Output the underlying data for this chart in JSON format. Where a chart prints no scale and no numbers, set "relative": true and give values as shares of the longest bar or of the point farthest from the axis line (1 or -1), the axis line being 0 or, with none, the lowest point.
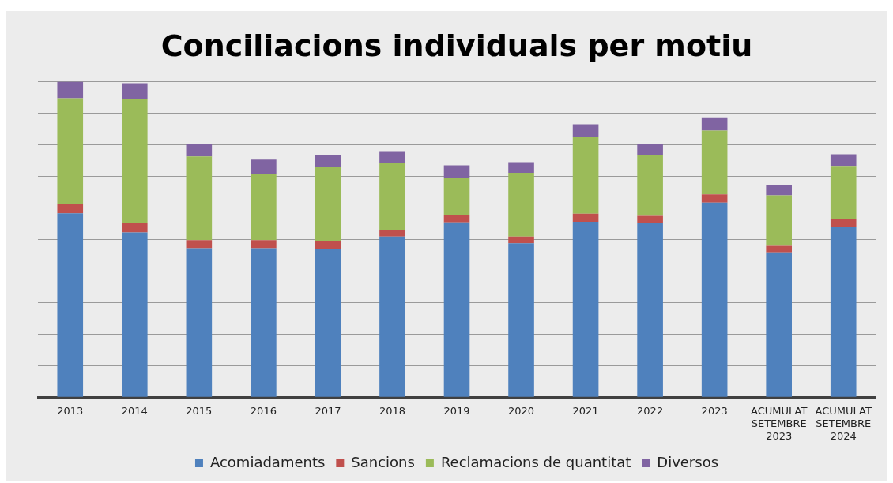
{
  "chart_data": {
    "type": "bar",
    "title": "Conciliacions individuals per motiu",
    "stacked": true,
    "relative": true,
    "grid": "y",
    "legend": "bottom",
    "categories": [
      "2013",
      "2014",
      "2015",
      "2016",
      "2017",
      "2018",
      "2019",
      "2020",
      "2021",
      "2022",
      "2023",
      "ACUMULAT SETEMBRE 2023",
      "ACUMULAT SETEMBRE 2024"
    ],
    "series": [
      {
        "name": "Acomiadaments",
        "color": "#4f81bd",
        "values": [
          0.583,
          0.522,
          0.472,
          0.472,
          0.47,
          0.509,
          0.554,
          0.488,
          0.556,
          0.551,
          0.617,
          0.459,
          0.541
        ]
      },
      {
        "name": "Sancions",
        "color": "#c0504d",
        "values": [
          0.029,
          0.029,
          0.026,
          0.026,
          0.024,
          0.021,
          0.024,
          0.021,
          0.026,
          0.024,
          0.026,
          0.021,
          0.024
        ]
      },
      {
        "name": "Reclamacions de quantitat",
        "color": "#9bbb59",
        "values": [
          0.336,
          0.394,
          0.265,
          0.21,
          0.236,
          0.213,
          0.118,
          0.202,
          0.244,
          0.192,
          0.202,
          0.16,
          0.168
        ]
      },
      {
        "name": "Diversos",
        "color": "#8064a2",
        "values": [
          0.052,
          0.05,
          0.039,
          0.045,
          0.039,
          0.037,
          0.039,
          0.034,
          0.039,
          0.034,
          0.042,
          0.031,
          0.037
        ]
      }
    ]
  }
}
